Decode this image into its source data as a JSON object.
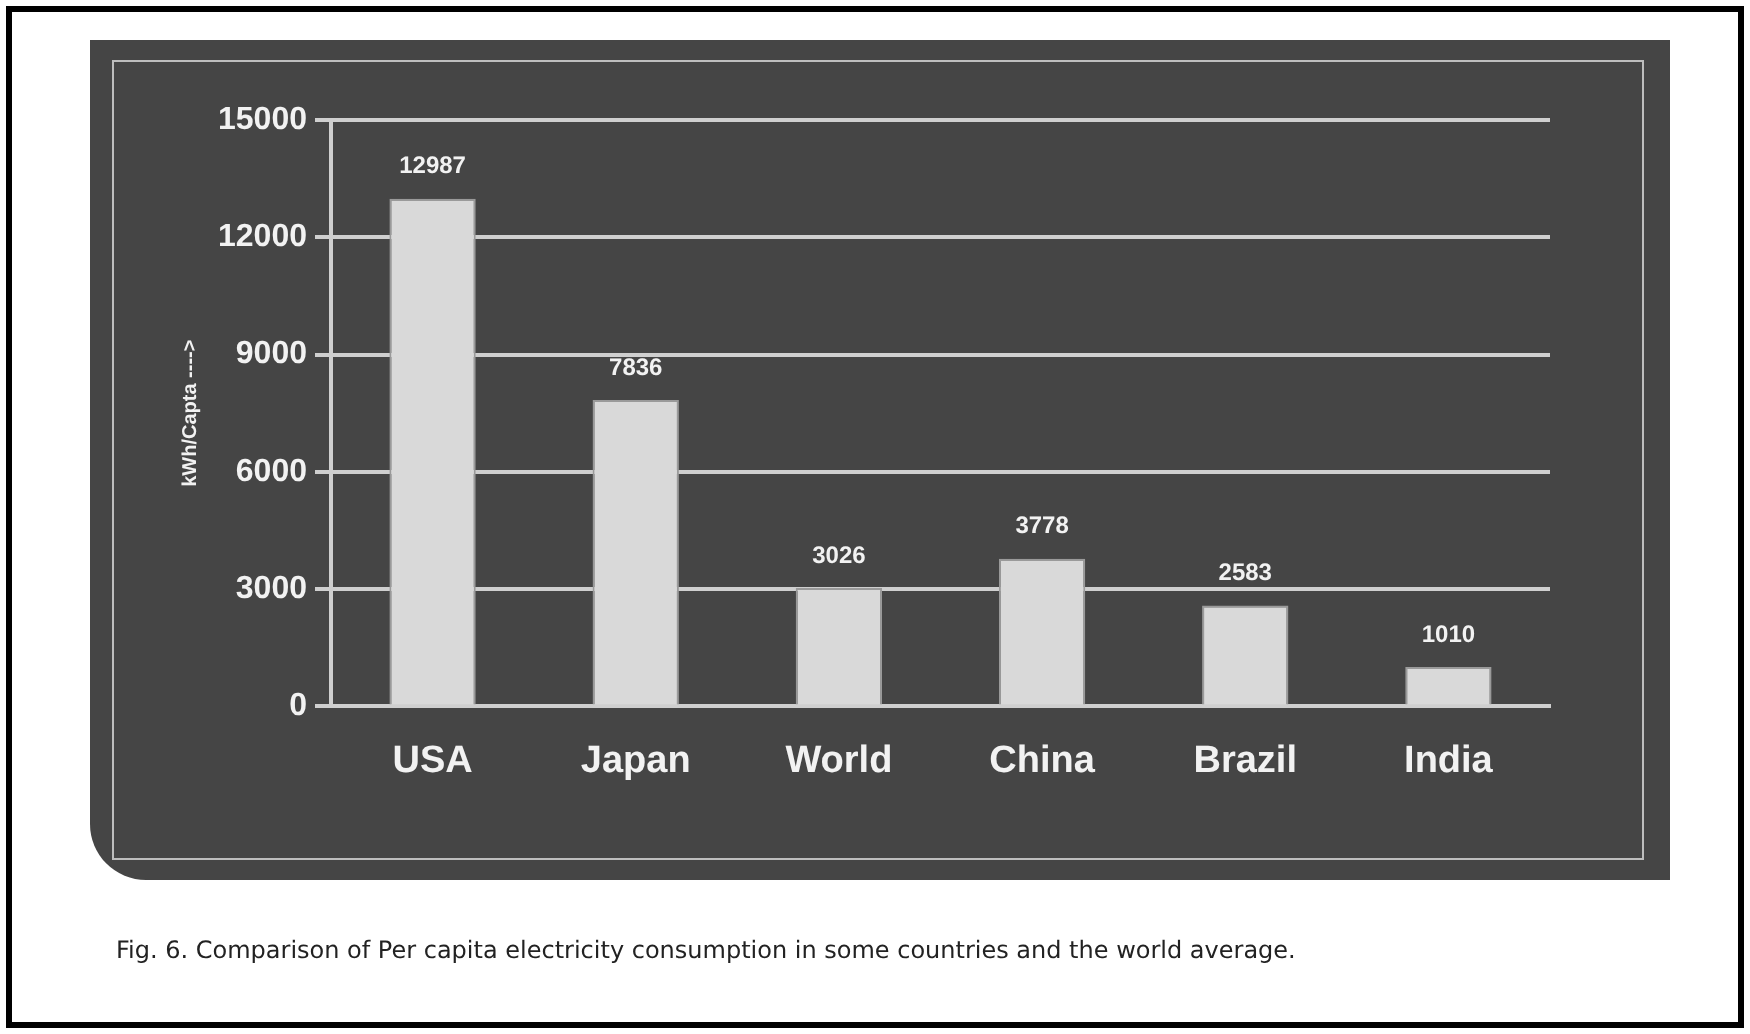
{
  "chart_data": {
    "type": "bar",
    "ylabel": "kWh/Capta ---->",
    "categories": [
      "USA",
      "Japan",
      "World",
      "China",
      "Brazil",
      "India"
    ],
    "values": [
      12987,
      7836,
      3026,
      3778,
      2583,
      1010
    ],
    "color": "#d9d9d9",
    "ylim": [
      0,
      15000
    ],
    "yticks": [
      0,
      3000,
      6000,
      9000,
      12000,
      15000
    ],
    "grid": "y",
    "legend": false,
    "data_labels": true,
    "annotations": [
      "Fig. 6. Comparison of Per capita electricity consumption in some countries and the world average."
    ]
  }
}
